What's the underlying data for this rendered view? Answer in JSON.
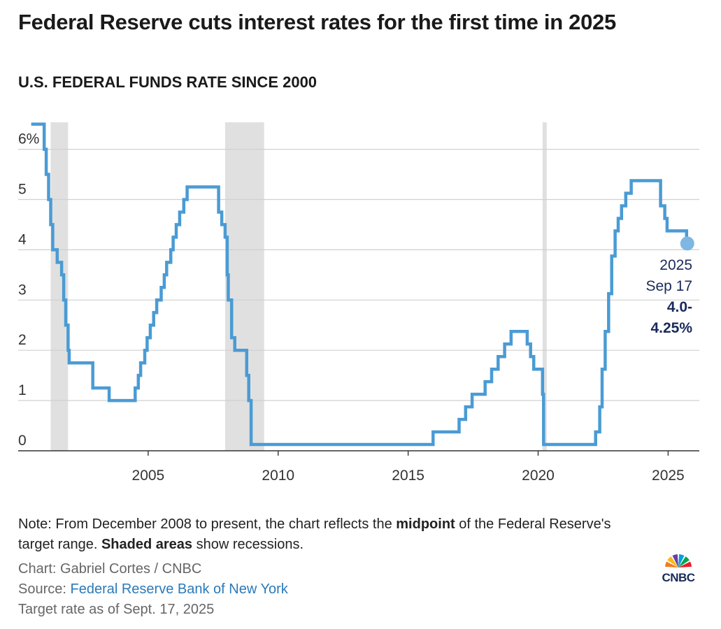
{
  "header": {
    "title": "Federal Reserve cuts interest rates for the first time in 2025",
    "subtitle": "U.S. FEDERAL FUNDS RATE SINCE 2000"
  },
  "chart_data": {
    "type": "line",
    "title": "U.S. FEDERAL FUNDS RATE SINCE 2000",
    "xlabel": "",
    "ylabel": "",
    "xlim": [
      2000.0,
      2026.2
    ],
    "ylim": [
      0,
      6.5
    ],
    "y_ticks": [
      0,
      1,
      2,
      3,
      4,
      5,
      6
    ],
    "y_tick_labels": [
      "0",
      "1",
      "2",
      "3",
      "4",
      "5",
      "6%"
    ],
    "x_ticks": [
      2005,
      2010,
      2015,
      2020,
      2025
    ],
    "x_tick_labels": [
      "2005",
      "2010",
      "2015",
      "2020",
      "2025"
    ],
    "grid": true,
    "line_color": "#4a9bd4",
    "recession_color": "#e0e0e0",
    "recessions": [
      [
        2001.25,
        2001.92
      ],
      [
        2007.96,
        2009.46
      ],
      [
        2020.17,
        2020.33
      ]
    ],
    "series": [
      {
        "values": [
          [
            2000.5,
            6.5
          ],
          [
            2001.0,
            6.0
          ],
          [
            2001.08,
            5.5
          ],
          [
            2001.17,
            5.0
          ],
          [
            2001.25,
            4.5
          ],
          [
            2001.33,
            4.0
          ],
          [
            2001.5,
            3.75
          ],
          [
            2001.67,
            3.5
          ],
          [
            2001.75,
            3.0
          ],
          [
            2001.83,
            2.5
          ],
          [
            2001.92,
            2.0
          ],
          [
            2001.96,
            1.75
          ],
          [
            2002.87,
            1.25
          ],
          [
            2003.5,
            1.0
          ],
          [
            2004.5,
            1.25
          ],
          [
            2004.62,
            1.5
          ],
          [
            2004.71,
            1.75
          ],
          [
            2004.87,
            2.0
          ],
          [
            2004.96,
            2.25
          ],
          [
            2005.08,
            2.5
          ],
          [
            2005.21,
            2.75
          ],
          [
            2005.33,
            3.0
          ],
          [
            2005.5,
            3.25
          ],
          [
            2005.62,
            3.5
          ],
          [
            2005.71,
            3.75
          ],
          [
            2005.87,
            4.0
          ],
          [
            2005.96,
            4.25
          ],
          [
            2006.08,
            4.5
          ],
          [
            2006.21,
            4.75
          ],
          [
            2006.37,
            5.0
          ],
          [
            2006.5,
            5.25
          ],
          [
            2007.71,
            4.75
          ],
          [
            2007.83,
            4.5
          ],
          [
            2007.96,
            4.25
          ],
          [
            2008.04,
            3.5
          ],
          [
            2008.08,
            3.0
          ],
          [
            2008.21,
            2.25
          ],
          [
            2008.33,
            2.0
          ],
          [
            2008.79,
            1.5
          ],
          [
            2008.87,
            1.0
          ],
          [
            2008.96,
            0.125
          ],
          [
            2015.96,
            0.375
          ],
          [
            2016.96,
            0.625
          ],
          [
            2017.21,
            0.875
          ],
          [
            2017.46,
            1.125
          ],
          [
            2017.96,
            1.375
          ],
          [
            2018.21,
            1.625
          ],
          [
            2018.46,
            1.875
          ],
          [
            2018.71,
            2.125
          ],
          [
            2018.96,
            2.375
          ],
          [
            2019.58,
            2.125
          ],
          [
            2019.71,
            1.875
          ],
          [
            2019.83,
            1.625
          ],
          [
            2020.17,
            1.125
          ],
          [
            2020.21,
            0.125
          ],
          [
            2022.21,
            0.375
          ],
          [
            2022.37,
            0.875
          ],
          [
            2022.46,
            1.625
          ],
          [
            2022.58,
            2.375
          ],
          [
            2022.71,
            3.125
          ],
          [
            2022.83,
            3.875
          ],
          [
            2022.96,
            4.375
          ],
          [
            2023.08,
            4.625
          ],
          [
            2023.21,
            4.875
          ],
          [
            2023.37,
            5.125
          ],
          [
            2023.58,
            5.375
          ],
          [
            2024.71,
            4.875
          ],
          [
            2024.87,
            4.625
          ],
          [
            2024.96,
            4.375
          ],
          [
            2025.71,
            4.125
          ]
        ]
      }
    ],
    "annotation": {
      "year": "2025",
      "date": "Sep 17",
      "value_line1": "4.0-",
      "value_line2": "4.25%",
      "x": 2025.71,
      "y": 4.125
    }
  },
  "footer": {
    "note_prefix": "Note: From December 2008 to present, the chart reflects the ",
    "note_bold1": "midpoint",
    "note_middle": " of the Federal Reserve's target range. ",
    "note_bold2": "Shaded areas",
    "note_suffix": " show recessions.",
    "chart_credit": "Chart: Gabriel Cortes / CNBC",
    "source_label": "Source: ",
    "source_link": "Federal Reserve Bank of New York",
    "target_rate": "Target rate as of Sept. 17, 2025"
  },
  "logo": {
    "text": "CNBC",
    "colors": [
      "#f47b20",
      "#fdb913",
      "#6b3fa0",
      "#00a0df",
      "#00a651",
      "#ed1c24"
    ]
  }
}
